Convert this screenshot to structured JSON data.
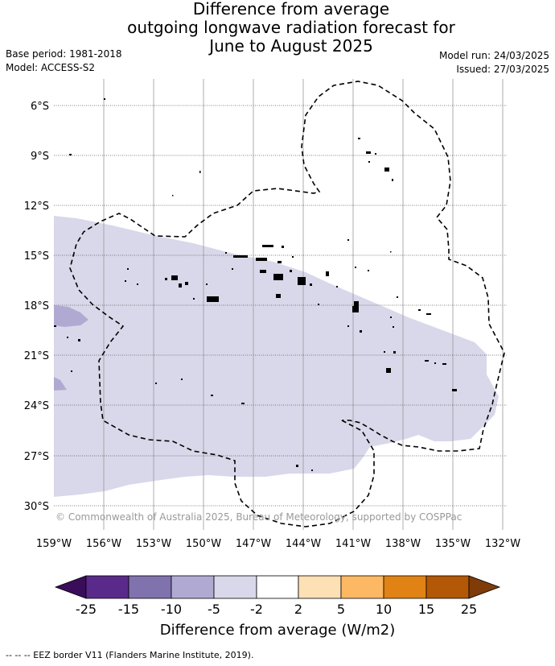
{
  "title_lines": [
    "Difference from average",
    "outgoing longwave radiation forecast for",
    "June to August 2025"
  ],
  "base_period": "Base period: 1981-2018",
  "model": "Model: ACCESS-S2",
  "model_run": "Model run: 24/03/2025",
  "issued": "Issued: 27/03/2025",
  "lat_labels": [
    "6°S",
    "9°S",
    "12°S",
    "15°S",
    "18°S",
    "21°S",
    "24°S",
    "27°S",
    "30°S"
  ],
  "lon_labels": [
    "159°W",
    "156°W",
    "153°W",
    "150°W",
    "147°W",
    "144°W",
    "141°W",
    "138°W",
    "135°W",
    "132°W"
  ],
  "copyright": "© Commonwealth of Australia 2025, Bureau of Meteorology, supported by COSPPac",
  "colorbar": {
    "label": "Difference from average (W/m2)",
    "ticks": [
      "-25",
      "-15",
      "-10",
      "-5",
      "-2",
      "2",
      "5",
      "10",
      "15",
      "25"
    ],
    "colors": [
      "#3a0d5b",
      "#5a2a8a",
      "#7f72ad",
      "#b0aad3",
      "#d8d8ea",
      "#ffffff",
      "#fde0b4",
      "#fdb863",
      "#e08214",
      "#b35806",
      "#7f3b08"
    ]
  },
  "footer": "-- -- -- EEZ border V11 (Flanders Marine Institute, 2019)."
}
